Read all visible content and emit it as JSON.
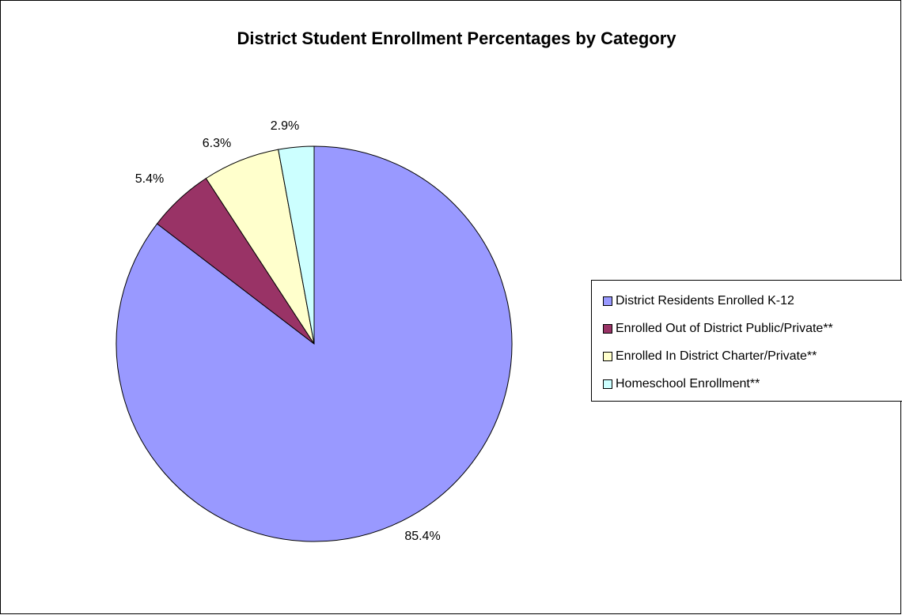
{
  "chart_data": {
    "type": "pie",
    "title": "District Student Enrollment Percentages by Category",
    "start_angle": "12 o'clock, clockwise",
    "legend_position": "right",
    "slices": [
      {
        "label": "District Residents Enrolled K-12",
        "value": 85.4,
        "value_label": "85.4%",
        "color": "#9999FF"
      },
      {
        "label": "Enrolled Out of District Public/Private**",
        "value": 5.4,
        "value_label": "5.4%",
        "color": "#993366"
      },
      {
        "label": "Enrolled In District Charter/Private**",
        "value": 6.3,
        "value_label": "6.3%",
        "color": "#FFFFCC"
      },
      {
        "label": "Homeschool Enrollment**",
        "value": 2.9,
        "value_label": "2.9%",
        "color": "#CCFFFF"
      }
    ]
  }
}
